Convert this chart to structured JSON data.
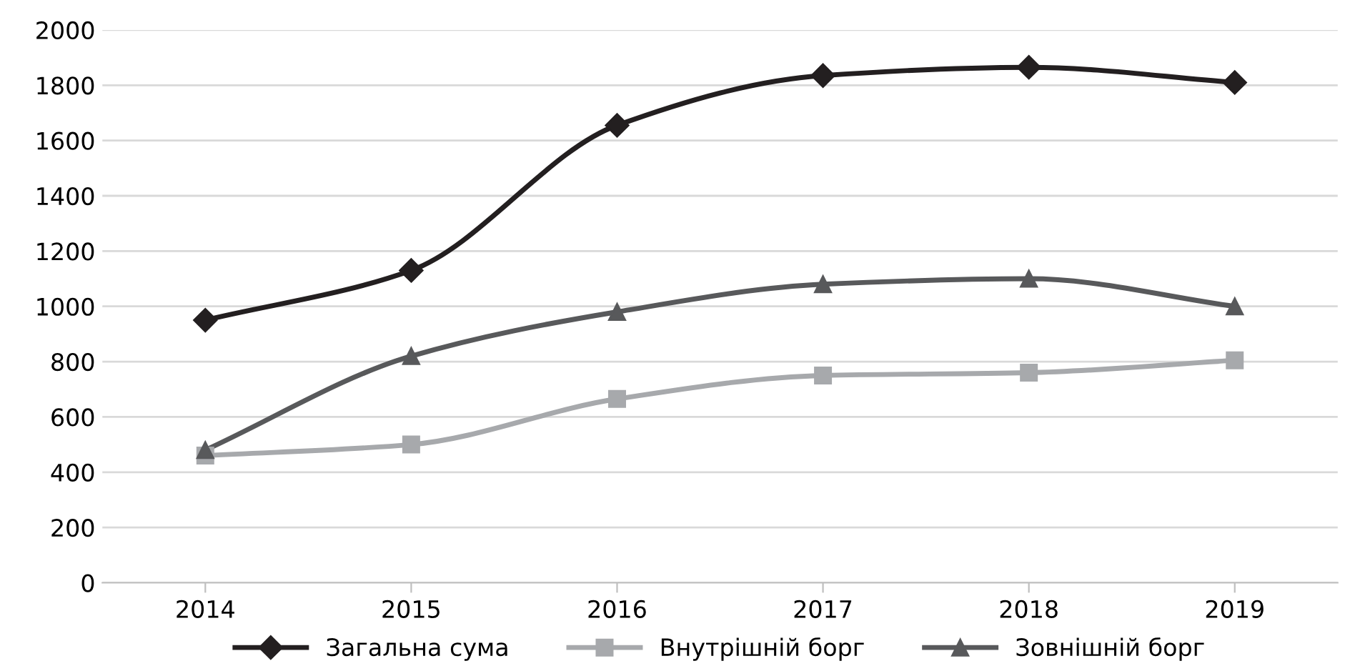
{
  "chart_data": {
    "type": "line",
    "categories": [
      "2014",
      "2015",
      "2016",
      "2017",
      "2018",
      "2019"
    ],
    "series": [
      {
        "name": "Загальна сума",
        "color": "#231f20",
        "marker": "diamond",
        "values": [
          950,
          1130,
          1655,
          1835,
          1865,
          1810
        ]
      },
      {
        "name": "Внутрішній борг",
        "color": "#a7a9ac",
        "marker": "square",
        "values": [
          460,
          500,
          665,
          750,
          760,
          805
        ]
      },
      {
        "name": "Зовнішній борг",
        "color": "#58595b",
        "marker": "triangle",
        "values": [
          480,
          820,
          980,
          1080,
          1100,
          1000
        ]
      }
    ],
    "ylim": [
      0,
      2000
    ],
    "yticks": [
      0,
      200,
      400,
      600,
      800,
      1000,
      1200,
      1400,
      1600,
      1800,
      2000
    ],
    "grid": "y",
    "legend": "bottom",
    "line_style": "solid"
  }
}
